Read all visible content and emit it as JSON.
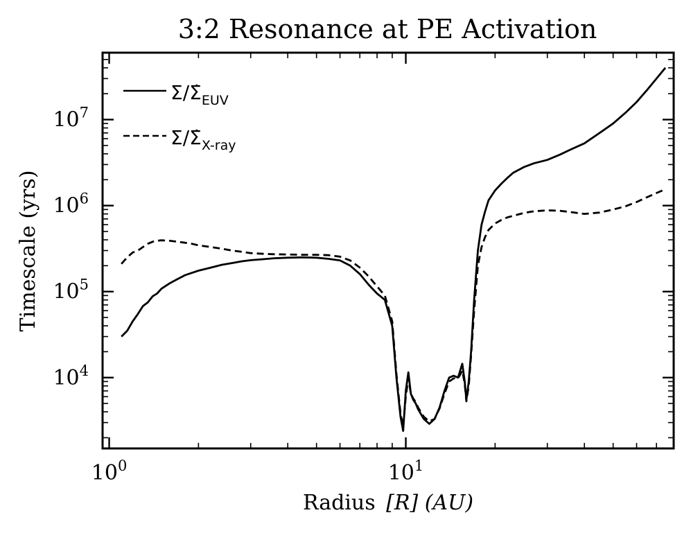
{
  "chart_data": {
    "type": "line",
    "title": "3:2 Resonance at PE Activation",
    "xlabel": "Radius",
    "xlabel_math": "[R] (AU)",
    "ylabel": "Timescale (yrs)",
    "xscale": "log",
    "yscale": "log",
    "xlim": [
      0.95,
      80
    ],
    "ylim": [
      1500,
      60000000
    ],
    "x_ticks": [
      {
        "value": 1,
        "base": "10",
        "exp": "0"
      },
      {
        "value": 10,
        "base": "10",
        "exp": "1"
      }
    ],
    "y_ticks": [
      {
        "value": 10000,
        "base": "10",
        "exp": "4"
      },
      {
        "value": 100000,
        "base": "10",
        "exp": "5"
      },
      {
        "value": 1000000,
        "base": "10",
        "exp": "6"
      },
      {
        "value": 10000000,
        "base": "10",
        "exp": "7"
      }
    ],
    "legend_position": "top-left",
    "series": [
      {
        "name": "EUV",
        "label_main": "Σ/Σ̇",
        "label_sub": "EUV",
        "style": "solid",
        "color": "#000000",
        "x": [
          1.1,
          1.15,
          1.2,
          1.25,
          1.3,
          1.35,
          1.4,
          1.45,
          1.5,
          1.6,
          1.7,
          1.8,
          1.9,
          2.0,
          2.2,
          2.4,
          2.6,
          2.8,
          3.0,
          3.3,
          3.6,
          4.0,
          4.5,
          5.0,
          5.5,
          6.0,
          6.5,
          7.0,
          7.5,
          8.0,
          8.5,
          9.0,
          9.3,
          9.6,
          9.8,
          10.0,
          10.2,
          10.4,
          10.6,
          10.8,
          11.0,
          11.5,
          12.0,
          12.5,
          13.0,
          13.5,
          14.0,
          14.5,
          15.0,
          15.5,
          15.8,
          16.0,
          16.3,
          16.6,
          17.0,
          17.5,
          18.0,
          18.5,
          19.0,
          20.0,
          21.0,
          22.0,
          23.0,
          25.0,
          27.0,
          30.0,
          33.0,
          36.0,
          40.0,
          45.0,
          50.0,
          55.0,
          60.0,
          65.0,
          70.0,
          75.0
        ],
        "values": [
          30000,
          35000,
          45000,
          55000,
          68000,
          75000,
          88000,
          95000,
          108000,
          125000,
          140000,
          155000,
          165000,
          175000,
          190000,
          205000,
          215000,
          225000,
          232000,
          238000,
          244000,
          248000,
          250000,
          248000,
          240000,
          230000,
          200000,
          160000,
          120000,
          95000,
          80000,
          40000,
          10000,
          3500,
          2400,
          7000,
          11500,
          6500,
          5500,
          5000,
          4300,
          3300,
          2900,
          3300,
          4500,
          7000,
          10000,
          10500,
          10000,
          14500,
          9000,
          5500,
          9000,
          20000,
          80000,
          300000,
          600000,
          850000,
          1150000,
          1500000,
          1800000,
          2100000,
          2400000,
          2800000,
          3100000,
          3400000,
          3900000,
          4500000,
          5300000,
          7000000,
          9000000,
          12000000,
          16000000,
          22000000,
          30000000,
          40000000
        ]
      },
      {
        "name": "X-ray",
        "label_main": "Σ/Σ̇",
        "label_sub": "X-ray",
        "style": "dashed",
        "color": "#000000",
        "x": [
          1.1,
          1.15,
          1.2,
          1.25,
          1.3,
          1.35,
          1.4,
          1.45,
          1.5,
          1.6,
          1.7,
          1.8,
          1.9,
          2.0,
          2.2,
          2.4,
          2.6,
          2.8,
          3.0,
          3.3,
          3.6,
          4.0,
          4.5,
          5.0,
          5.5,
          6.0,
          6.5,
          7.0,
          7.5,
          8.0,
          8.5,
          9.0,
          9.3,
          9.6,
          9.8,
          10.0,
          10.2,
          10.4,
          10.6,
          10.8,
          11.0,
          11.5,
          12.0,
          12.5,
          13.0,
          13.5,
          14.0,
          14.5,
          15.0,
          15.5,
          15.8,
          16.0,
          16.3,
          16.6,
          17.0,
          17.5,
          18.0,
          18.5,
          19.0,
          20.0,
          21.0,
          22.0,
          23.0,
          25.0,
          27.0,
          30.0,
          33.0,
          36.0,
          40.0,
          45.0,
          50.0,
          55.0,
          60.0,
          65.0,
          70.0,
          75.0
        ],
        "values": [
          210000,
          250000,
          285000,
          300000,
          330000,
          360000,
          380000,
          390000,
          395000,
          390000,
          380000,
          370000,
          360000,
          345000,
          330000,
          315000,
          300000,
          290000,
          280000,
          275000,
          272000,
          270000,
          268000,
          268000,
          265000,
          255000,
          230000,
          190000,
          150000,
          115000,
          90000,
          45000,
          11000,
          3800,
          2700,
          6000,
          10000,
          6500,
          5700,
          5200,
          4500,
          3500,
          3100,
          3300,
          4400,
          6500,
          9000,
          9800,
          9800,
          12000,
          8500,
          5300,
          8000,
          18000,
          60000,
          200000,
          330000,
          430000,
          520000,
          620000,
          680000,
          730000,
          760000,
          820000,
          860000,
          880000,
          870000,
          840000,
          800000,
          830000,
          900000,
          980000,
          1100000,
          1250000,
          1400000,
          1550000
        ]
      }
    ]
  }
}
